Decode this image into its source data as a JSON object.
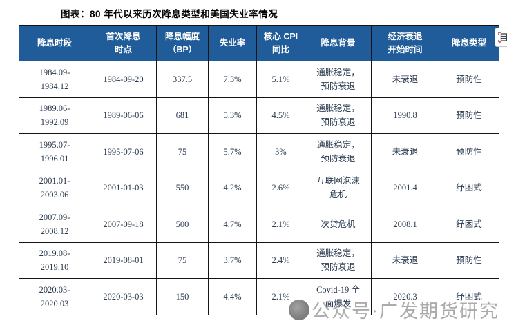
{
  "title": "图表：80 年代以来历次降息类型和美国失业率情况",
  "colors": {
    "header_bg": "#1F5C99",
    "header_text": "#ffffff",
    "body_text": "#2a3a50",
    "border": "#141414",
    "watermark_text": "#8f8f8f"
  },
  "table": {
    "headers": [
      [
        "降息时段"
      ],
      [
        "首次降息",
        "时点"
      ],
      [
        "降息幅度",
        "（BP）"
      ],
      [
        "失业率"
      ],
      [
        "核心 CPI",
        "同比"
      ],
      [
        "降息背景"
      ],
      [
        "经济衰退",
        "开始时间"
      ],
      [
        "降息类型"
      ]
    ],
    "rows": [
      [
        [
          "1984.09-",
          "1984.12"
        ],
        [
          "1984-09-20"
        ],
        [
          "337.5"
        ],
        [
          "7.3%"
        ],
        [
          "5.1%"
        ],
        [
          "通胀稳定，",
          "预防衰退"
        ],
        [
          "未衰退"
        ],
        [
          "预防性"
        ]
      ],
      [
        [
          "1989.06-",
          "1992.09"
        ],
        [
          "1989-06-06"
        ],
        [
          "681"
        ],
        [
          "5.3%"
        ],
        [
          "4.5%"
        ],
        [
          "通胀稳定，",
          "预防衰退"
        ],
        [
          "1990.8"
        ],
        [
          "预防性"
        ]
      ],
      [
        [
          "1995.07-",
          "1996.01"
        ],
        [
          "1995-07-06"
        ],
        [
          "75"
        ],
        [
          "5.7%"
        ],
        [
          "3%"
        ],
        [
          "通胀稳定，",
          "预防衰退"
        ],
        [
          "未衰退"
        ],
        [
          "预防性"
        ]
      ],
      [
        [
          "2001.01-",
          "2003.06"
        ],
        [
          "2001-01-03"
        ],
        [
          "550"
        ],
        [
          "4.2%"
        ],
        [
          "2.6%"
        ],
        [
          "互联网泡沫",
          "危机"
        ],
        [
          "2001.4"
        ],
        [
          "纾困式"
        ]
      ],
      [
        [
          "2007.09-",
          "2008.12"
        ],
        [
          "2007-09-18"
        ],
        [
          "500"
        ],
        [
          "4.7%"
        ],
        [
          "2.1%"
        ],
        [
          "次贷危机"
        ],
        [
          "2008.1"
        ],
        [
          "纾困式"
        ]
      ],
      [
        [
          "2019.08-",
          "2019.10"
        ],
        [
          "2019-08-01"
        ],
        [
          "75"
        ],
        [
          "3.7%"
        ],
        [
          "2.4%"
        ],
        [
          "通胀稳定，",
          "预防衰退"
        ],
        [
          "未衰退"
        ],
        [
          "预防性"
        ]
      ],
      [
        [
          "2020.03-",
          "2020.03"
        ],
        [
          "2020-03-03"
        ],
        [
          "150"
        ],
        [
          "4.4%"
        ],
        [
          "2.1%"
        ],
        [
          "Covid-19 全",
          "面爆发"
        ],
        [
          "2020.3"
        ],
        [
          "纾困式"
        ]
      ]
    ]
  },
  "watermark": {
    "text": "公众号·广发期货研究",
    "logo": "gf-futures-logo-icon"
  },
  "corner_button": {
    "icon": "copy-icon"
  }
}
